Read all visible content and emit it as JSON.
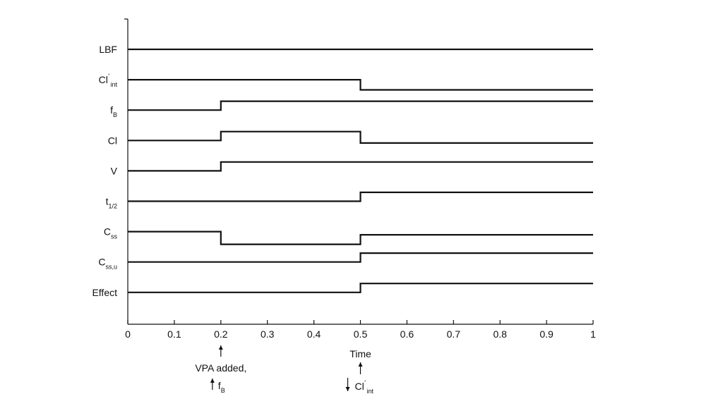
{
  "chart_data": {
    "type": "line",
    "title": "",
    "xlabel": "Time",
    "ylabel": "",
    "xlim": [
      0,
      1
    ],
    "x_ticks": [
      "0",
      "0.1",
      "0.2",
      "0.3",
      "0.4",
      "0.5",
      "0.6",
      "0.7",
      "0.8",
      "0.9",
      "1"
    ],
    "grid": false,
    "series": [
      {
        "name": "LBF",
        "sub": "",
        "prime": false,
        "x": [
          0,
          1
        ],
        "y": [
          0,
          0
        ]
      },
      {
        "name": "Cl",
        "sub": "int",
        "prime": true,
        "x": [
          0,
          0.5,
          0.5,
          1
        ],
        "y": [
          0,
          0,
          -0.8,
          -0.8
        ]
      },
      {
        "name": "f",
        "sub": "B",
        "prime": false,
        "x": [
          0,
          0.2,
          0.2,
          1
        ],
        "y": [
          0,
          0,
          0.7,
          0.7
        ]
      },
      {
        "name": "Cl",
        "sub": "",
        "prime": false,
        "x": [
          0,
          0.2,
          0.2,
          0.5,
          0.5,
          1
        ],
        "y": [
          0,
          0,
          0.7,
          0.7,
          -0.2,
          -0.2
        ]
      },
      {
        "name": "V",
        "sub": "",
        "prime": false,
        "x": [
          0,
          0.2,
          0.2,
          1
        ],
        "y": [
          0,
          0,
          0.7,
          0.7
        ]
      },
      {
        "name": "t",
        "sub": "1/2",
        "prime": false,
        "x": [
          0,
          0.5,
          0.5,
          1
        ],
        "y": [
          0,
          0,
          0.7,
          0.7
        ]
      },
      {
        "name": "C",
        "sub": "ss",
        "prime": false,
        "x": [
          0,
          0.2,
          0.2,
          0.5,
          0.5,
          1
        ],
        "y": [
          0,
          0,
          -1,
          -1,
          -0.25,
          -0.25
        ]
      },
      {
        "name": "C",
        "sub": "ss,u",
        "prime": false,
        "x": [
          0,
          0.5,
          0.5,
          1
        ],
        "y": [
          0,
          0,
          0.7,
          0.7
        ]
      },
      {
        "name": "Effect",
        "sub": "",
        "prime": false,
        "x": [
          0,
          0.5,
          0.5,
          1
        ],
        "y": [
          0,
          0,
          0.7,
          0.7
        ]
      }
    ],
    "annotations": [
      {
        "x": 0.2,
        "arrow": "up",
        "line1": "VPA added,",
        "line2_symbol": "f",
        "line2_sub": "B",
        "line2_prime": false,
        "line2_dir": "up"
      },
      {
        "x": 0.5,
        "arrow": "up",
        "line1": "",
        "line2_symbol": "Cl",
        "line2_sub": "int",
        "line2_prime": true,
        "line2_dir": "down"
      }
    ]
  }
}
